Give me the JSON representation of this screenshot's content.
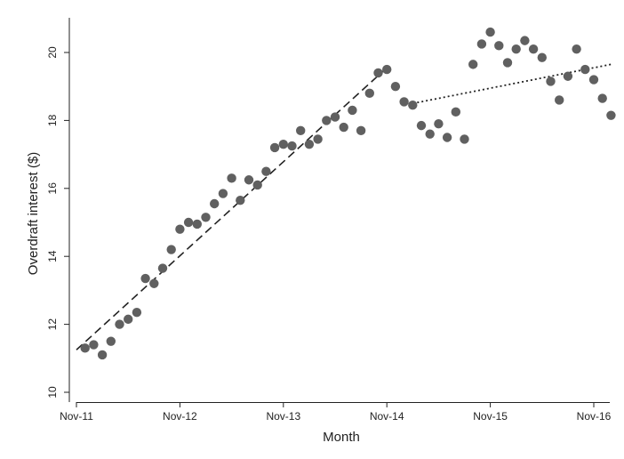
{
  "chart_data": {
    "type": "scatter",
    "xlabel": "Month",
    "ylabel": "Overdraft interest ($)",
    "xlim": [
      "2011-11",
      "2016-11"
    ],
    "ylim": [
      10,
      21
    ],
    "grid": false,
    "legend": "none",
    "x_ticks": [
      "Nov-11",
      "Nov-12",
      "Nov-13",
      "Nov-14",
      "Nov-15",
      "Nov-16"
    ],
    "y_ticks": [
      10,
      12,
      14,
      16,
      18,
      20
    ],
    "colors": {
      "points": "#606060",
      "lines": "#222222",
      "axis": "#222222"
    },
    "series": [
      {
        "values": [
          [
            "2011-12",
            11.3
          ],
          [
            "2012-01",
            11.4
          ],
          [
            "2012-02",
            11.1
          ],
          [
            "2012-03",
            11.5
          ],
          [
            "2012-04",
            12.0
          ],
          [
            "2012-05",
            12.15
          ],
          [
            "2012-06",
            12.35
          ],
          [
            "2012-07",
            13.35
          ],
          [
            "2012-08",
            13.2
          ],
          [
            "2012-09",
            13.65
          ],
          [
            "2012-10",
            14.2
          ],
          [
            "2012-11",
            14.8
          ],
          [
            "2012-12",
            15.0
          ],
          [
            "2013-01",
            14.95
          ],
          [
            "2013-02",
            15.15
          ],
          [
            "2013-03",
            15.55
          ],
          [
            "2013-04",
            15.85
          ],
          [
            "2013-05",
            16.3
          ],
          [
            "2013-06",
            15.65
          ],
          [
            "2013-07",
            16.25
          ],
          [
            "2013-08",
            16.1
          ],
          [
            "2013-09",
            16.5
          ],
          [
            "2013-10",
            17.2
          ],
          [
            "2013-11",
            17.3
          ],
          [
            "2013-12",
            17.25
          ],
          [
            "2014-01",
            17.7
          ],
          [
            "2014-02",
            17.3
          ],
          [
            "2014-03",
            17.45
          ],
          [
            "2014-04",
            18.0
          ],
          [
            "2014-05",
            18.1
          ],
          [
            "2014-06",
            17.8
          ],
          [
            "2014-07",
            18.3
          ],
          [
            "2014-08",
            17.7
          ],
          [
            "2014-09",
            18.8
          ],
          [
            "2014-10",
            19.4
          ],
          [
            "2014-11",
            19.5
          ],
          [
            "2014-12",
            19.0
          ],
          [
            "2015-01",
            18.55
          ],
          [
            "2015-02",
            18.45
          ],
          [
            "2015-03",
            17.85
          ],
          [
            "2015-04",
            17.6
          ],
          [
            "2015-05",
            17.9
          ],
          [
            "2015-06",
            17.5
          ],
          [
            "2015-07",
            18.25
          ],
          [
            "2015-08",
            17.45
          ],
          [
            "2015-09",
            19.65
          ],
          [
            "2015-10",
            20.25
          ],
          [
            "2015-11",
            20.6
          ],
          [
            "2015-12",
            20.2
          ],
          [
            "2016-01",
            19.7
          ],
          [
            "2016-02",
            20.1
          ],
          [
            "2016-03",
            20.35
          ],
          [
            "2016-04",
            20.1
          ],
          [
            "2016-05",
            19.85
          ],
          [
            "2016-06",
            19.15
          ],
          [
            "2016-07",
            18.6
          ],
          [
            "2016-08",
            19.3
          ],
          [
            "2016-09",
            20.1
          ],
          [
            "2016-10",
            19.5
          ],
          [
            "2016-11",
            19.2
          ],
          [
            "2016-12",
            18.65
          ],
          [
            "2017-01",
            18.15
          ]
        ]
      }
    ],
    "trend_lines": [
      {
        "style": "dashed",
        "from": [
          "2011-11",
          11.25
        ],
        "to": [
          "2014-11",
          19.55
        ]
      },
      {
        "style": "dotted",
        "from": [
          "2015-01",
          18.45
        ],
        "to": [
          "2017-01",
          19.65
        ]
      }
    ]
  }
}
